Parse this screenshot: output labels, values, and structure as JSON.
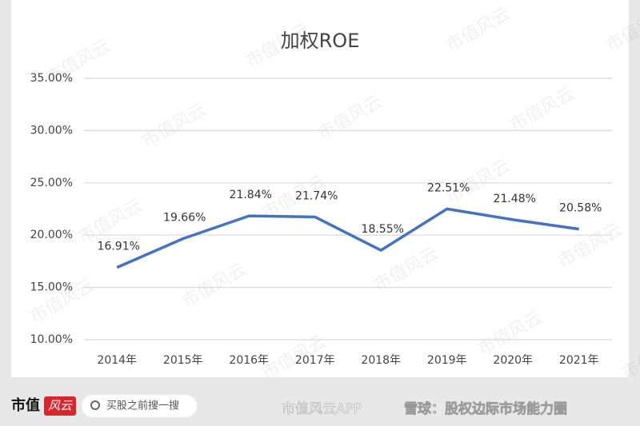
{
  "chart_data": {
    "type": "line",
    "title": "加权ROE",
    "categories": [
      "2014年",
      "2015年",
      "2016年",
      "2017年",
      "2018年",
      "2019年",
      "2020年",
      "2021年"
    ],
    "series": [
      {
        "name": "加权ROE",
        "color": "#4472c4",
        "values": [
          16.91,
          19.66,
          21.84,
          21.74,
          18.55,
          22.51,
          21.48,
          20.58
        ],
        "value_labels": [
          "16.91%",
          "19.66%",
          "21.84%",
          "21.74%",
          "18.55%",
          "22.51%",
          "21.48%",
          "20.58%"
        ]
      }
    ],
    "ylim": [
      10,
      35
    ],
    "yticks": [
      {
        "value": 10,
        "label": "10.00%"
      },
      {
        "value": 15,
        "label": "15.00%"
      },
      {
        "value": 20,
        "label": "20.00%"
      },
      {
        "value": 25,
        "label": "25.00%"
      },
      {
        "value": 30,
        "label": "30.00%"
      },
      {
        "value": 35,
        "label": "35.00%"
      }
    ],
    "grid": true
  },
  "watermark": "市值风云",
  "footer": {
    "logo": "市值",
    "logo_badge": "风云",
    "search": "买股之前搜一搜",
    "app": "市值风云APP",
    "source": "雪球：股权边际市场能力圈"
  }
}
